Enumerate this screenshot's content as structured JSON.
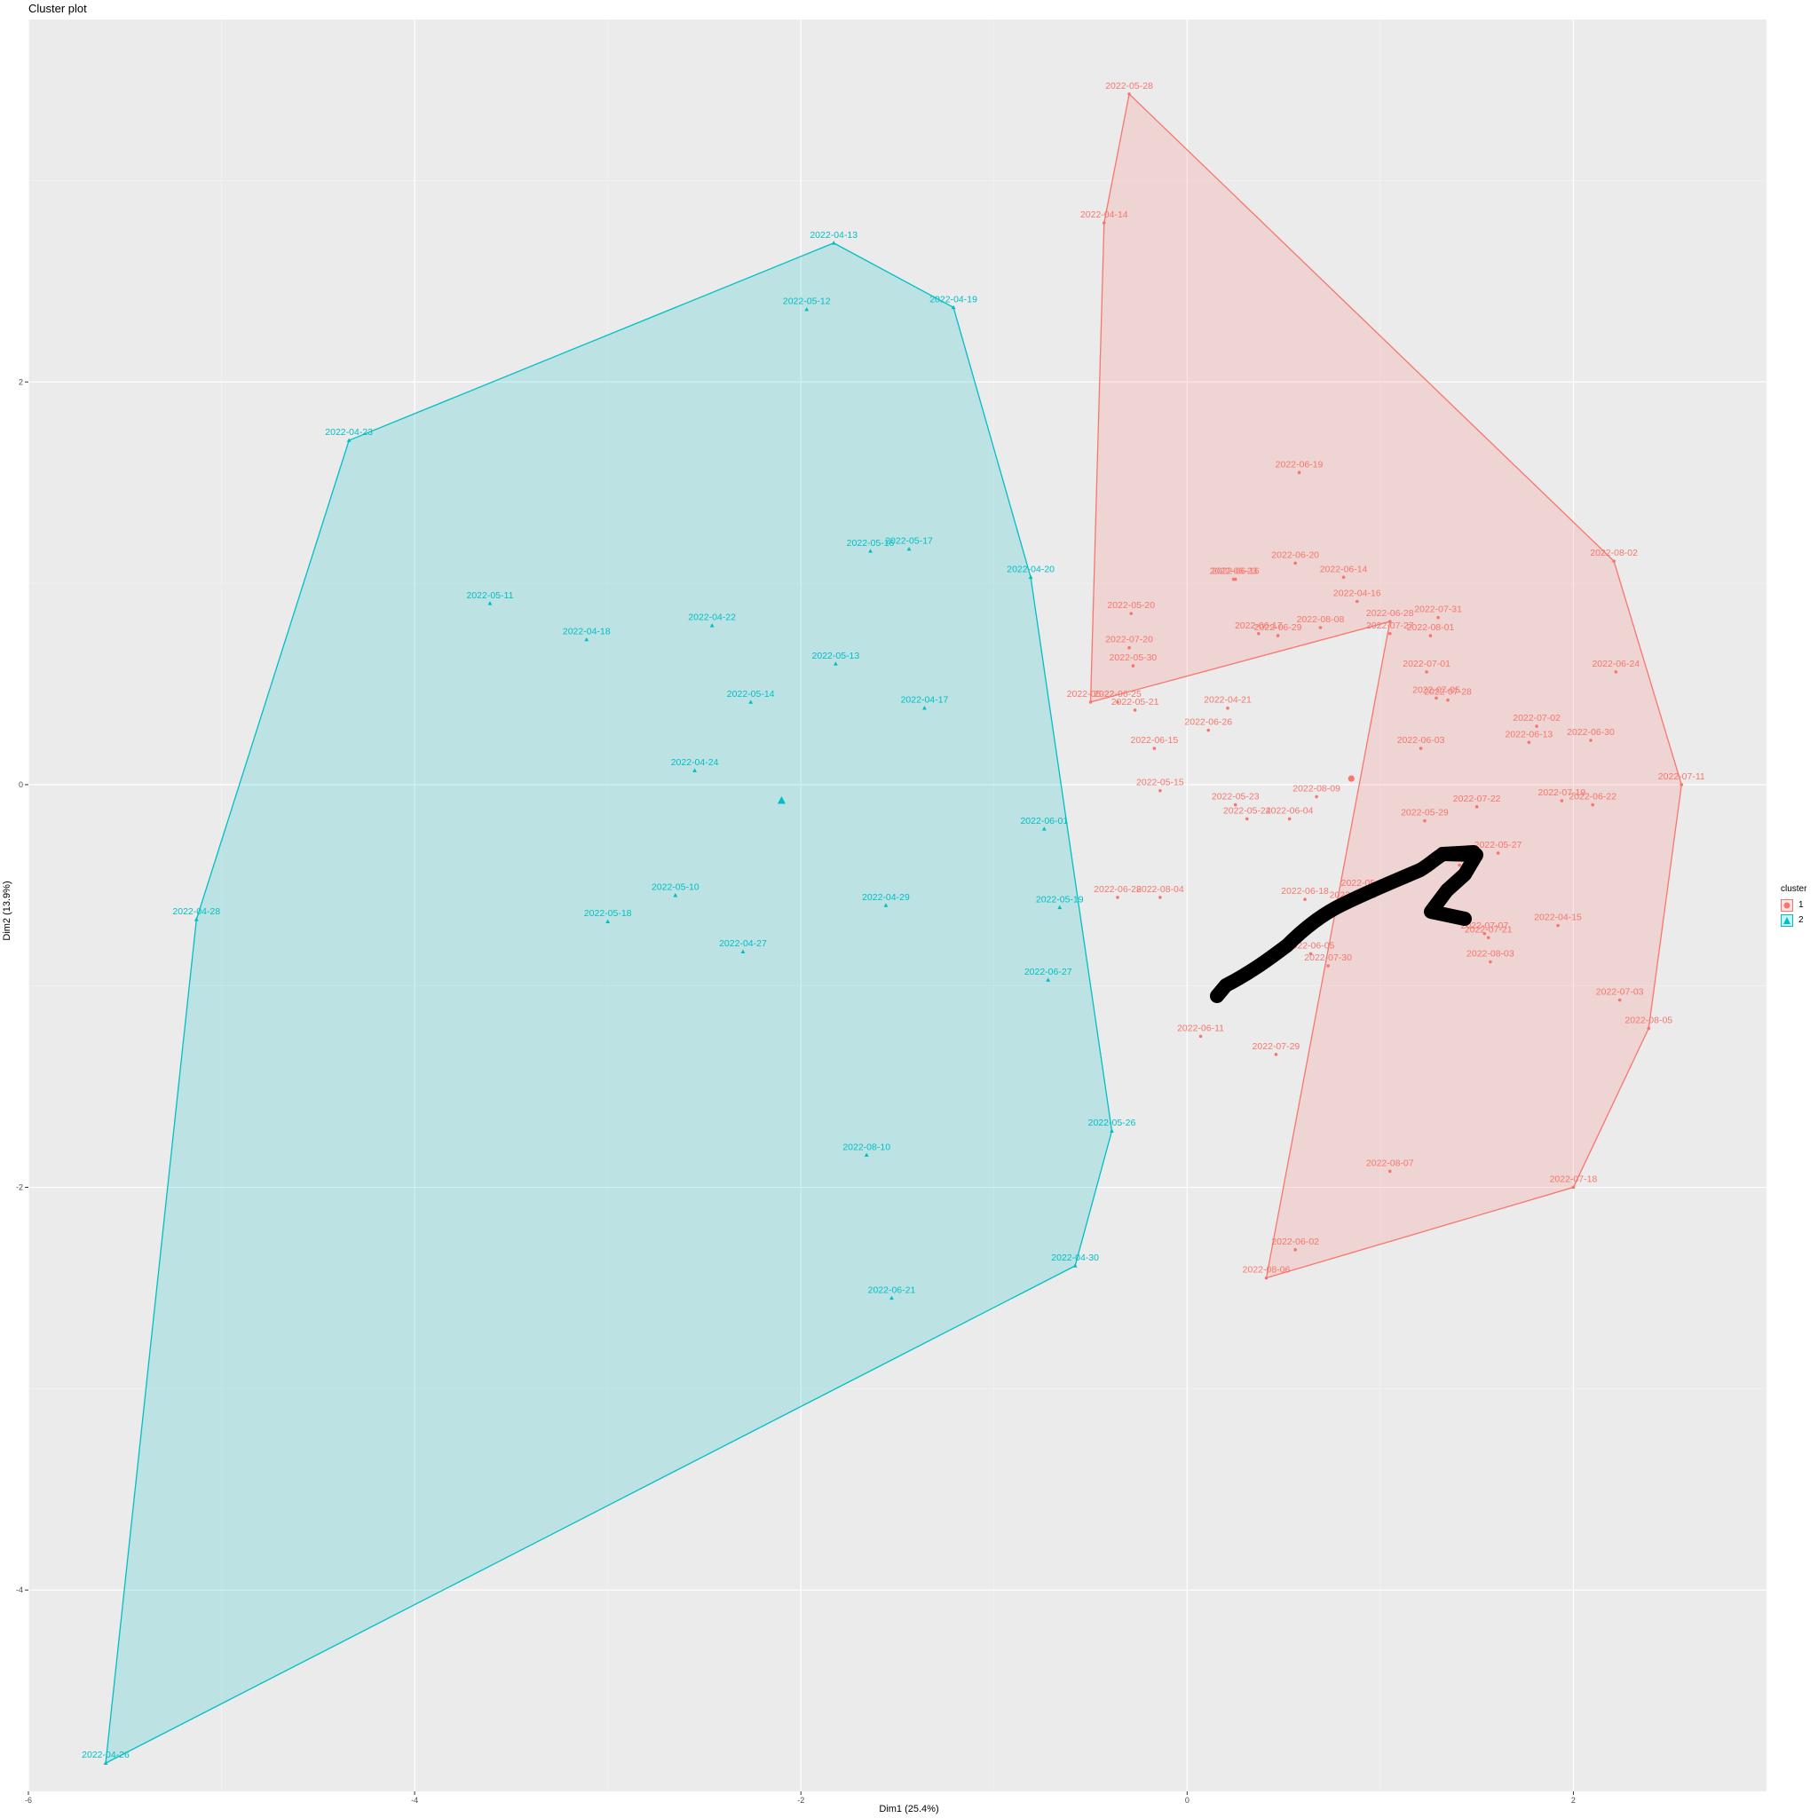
{
  "chart_data": {
    "type": "scatter",
    "title": "Cluster plot",
    "xlabel": "Dim1 (25.4%)",
    "ylabel": "Dim2 (13.9%)",
    "xlim": [
      -6,
      3
    ],
    "ylim": [
      -5,
      3.8
    ],
    "x_ticks": [
      -6,
      -4,
      -2,
      0,
      2
    ],
    "y_ticks": [
      -4,
      -2,
      0,
      2
    ],
    "x_tick_labels": [
      "-6",
      "-4",
      "-2",
      "0",
      "2"
    ],
    "y_tick_labels": [
      "-4",
      "-2",
      "0",
      "2"
    ],
    "grid": true,
    "legend": {
      "title": "cluster",
      "position": "right",
      "entries": [
        {
          "label": "1",
          "shape": "circle",
          "color": "#F8766D"
        },
        {
          "label": "2",
          "shape": "triangle",
          "color": "#00BFC4"
        }
      ]
    },
    "colors": {
      "cluster1": "#F8766D",
      "cluster2": "#00BFC4",
      "panel": "#EBEBEB",
      "grid": "#FFFFFF"
    },
    "centroids": [
      {
        "cluster": "1",
        "x": 0.85,
        "y": 0.03
      },
      {
        "cluster": "2",
        "x": -2.1,
        "y": -0.08
      }
    ],
    "hulls": [
      {
        "cluster": "1",
        "points": [
          "2022-05-28",
          "2022-04-14",
          "2022-05-22",
          "2022-06-28",
          "2022-08-06",
          "2022-07-18",
          "2022-08-05",
          "2022-07-11",
          "2022-08-02"
        ]
      },
      {
        "cluster": "2",
        "points": [
          "2022-04-13",
          "2022-04-23",
          "2022-04-28",
          "2022-04-26",
          "2022-04-30",
          "2022-05-26",
          "2022-04-20",
          "2022-04-19"
        ]
      }
    ],
    "series": [
      {
        "name": "1",
        "points": [
          {
            "label": "2022-05-28",
            "x": -0.3,
            "y": 3.43
          },
          {
            "label": "2022-04-14",
            "x": -0.43,
            "y": 2.79
          },
          {
            "label": "2022-06-19",
            "x": 0.58,
            "y": 1.55
          },
          {
            "label": "2022-08-02",
            "x": 2.21,
            "y": 1.11
          },
          {
            "label": "2022-06-23",
            "x": 0.24,
            "y": 1.02
          },
          {
            "label": "2022-06-16",
            "x": 0.25,
            "y": 1.02
          },
          {
            "label": "2022-06-20",
            "x": 0.56,
            "y": 1.1
          },
          {
            "label": "2022-06-14",
            "x": 0.81,
            "y": 1.03
          },
          {
            "label": "2022-04-16",
            "x": 0.88,
            "y": 0.91
          },
          {
            "label": "2022-05-20",
            "x": -0.29,
            "y": 0.85
          },
          {
            "label": "2022-07-31",
            "x": 1.3,
            "y": 0.83
          },
          {
            "label": "2022-06-28",
            "x": 1.05,
            "y": 0.81
          },
          {
            "label": "2022-06-17",
            "x": 0.37,
            "y": 0.75
          },
          {
            "label": "2022-06-29",
            "x": 0.47,
            "y": 0.74
          },
          {
            "label": "2022-08-08",
            "x": 0.69,
            "y": 0.78
          },
          {
            "label": "2022-07-27",
            "x": 1.05,
            "y": 0.75
          },
          {
            "label": "2022-08-01",
            "x": 1.26,
            "y": 0.74
          },
          {
            "label": "2022-07-20",
            "x": -0.3,
            "y": 0.68
          },
          {
            "label": "2022-05-30",
            "x": -0.28,
            "y": 0.59
          },
          {
            "label": "2022-07-01",
            "x": 1.24,
            "y": 0.56
          },
          {
            "label": "2022-06-24",
            "x": 2.22,
            "y": 0.56
          },
          {
            "label": "2022-05-22",
            "x": -0.5,
            "y": 0.41
          },
          {
            "label": "2022-06-25",
            "x": -0.36,
            "y": 0.41
          },
          {
            "label": "2022-05-21",
            "x": -0.27,
            "y": 0.37
          },
          {
            "label": "2022-07-05",
            "x": 1.29,
            "y": 0.43
          },
          {
            "label": "2022-07-28",
            "x": 1.35,
            "y": 0.42
          },
          {
            "label": "2022-04-21",
            "x": 0.21,
            "y": 0.38
          },
          {
            "label": "2022-07-02",
            "x": 1.81,
            "y": 0.29
          },
          {
            "label": "2022-06-26",
            "x": 0.11,
            "y": 0.27
          },
          {
            "label": "2022-06-13",
            "x": 1.77,
            "y": 0.21
          },
          {
            "label": "2022-06-30",
            "x": 2.09,
            "y": 0.22
          },
          {
            "label": "2022-06-15",
            "x": -0.17,
            "y": 0.18
          },
          {
            "label": "2022-06-03",
            "x": 1.21,
            "y": 0.18
          },
          {
            "label": "2022-07-11",
            "x": 2.56,
            "y": 0.0
          },
          {
            "label": "2022-05-15",
            "x": -0.14,
            "y": -0.03
          },
          {
            "label": "2022-08-09",
            "x": 0.67,
            "y": -0.06
          },
          {
            "label": "2022-07-19",
            "x": 1.94,
            "y": -0.08
          },
          {
            "label": "2022-06-22",
            "x": 2.1,
            "y": -0.1
          },
          {
            "label": "2022-05-23",
            "x": 0.25,
            "y": -0.1
          },
          {
            "label": "2022-07-22",
            "x": 1.5,
            "y": -0.11
          },
          {
            "label": "2022-05-24",
            "x": 0.31,
            "y": -0.17
          },
          {
            "label": "2022-06-04",
            "x": 0.53,
            "y": -0.17
          },
          {
            "label": "2022-05-29",
            "x": 1.23,
            "y": -0.18
          },
          {
            "label": "2022-05-27",
            "x": 1.61,
            "y": -0.34
          },
          {
            "label": "2022-08-12",
            "x": 1.41,
            "y": -0.4
          },
          {
            "label": "2022-06-28b",
            "x": -0.36,
            "y": -0.56
          },
          {
            "label": "2022-08-04",
            "x": -0.14,
            "y": -0.56
          },
          {
            "label": "2022-06-18",
            "x": 0.61,
            "y": -0.57
          },
          {
            "label": "2022-05-25",
            "x": 0.92,
            "y": -0.53
          },
          {
            "label": "2022-07-16",
            "x": 0.86,
            "y": -0.59
          },
          {
            "label": "2022-07-07",
            "x": 1.54,
            "y": -0.74
          },
          {
            "label": "2022-04-15",
            "x": 1.92,
            "y": -0.7
          },
          {
            "label": "2022-07-21",
            "x": 1.56,
            "y": -0.76
          },
          {
            "label": "2022-06-05",
            "x": 0.64,
            "y": -0.84
          },
          {
            "label": "2022-07-30",
            "x": 0.73,
            "y": -0.9
          },
          {
            "label": "2022-08-03",
            "x": 1.57,
            "y": -0.88
          },
          {
            "label": "2022-07-03",
            "x": 2.24,
            "y": -1.07
          },
          {
            "label": "2022-06-11",
            "x": 0.07,
            "y": -1.25
          },
          {
            "label": "2022-08-05",
            "x": 2.39,
            "y": -1.21
          },
          {
            "label": "2022-07-29",
            "x": 0.46,
            "y": -1.34
          },
          {
            "label": "2022-08-07",
            "x": 1.05,
            "y": -1.92
          },
          {
            "label": "2022-07-18",
            "x": 2.0,
            "y": -2.0
          },
          {
            "label": "2022-06-02",
            "x": 0.56,
            "y": -2.31
          },
          {
            "label": "2022-08-06",
            "x": 0.41,
            "y": -2.45
          }
        ]
      },
      {
        "name": "2",
        "points": [
          {
            "label": "2022-04-13",
            "x": -1.83,
            "y": 2.69
          },
          {
            "label": "2022-05-12",
            "x": -1.97,
            "y": 2.36
          },
          {
            "label": "2022-04-19",
            "x": -1.21,
            "y": 2.37
          },
          {
            "label": "2022-04-23",
            "x": -4.34,
            "y": 1.71
          },
          {
            "label": "2022-05-16",
            "x": -1.64,
            "y": 1.16
          },
          {
            "label": "2022-05-17",
            "x": -1.44,
            "y": 1.17
          },
          {
            "label": "2022-04-20",
            "x": -0.81,
            "y": 1.03
          },
          {
            "label": "2022-05-11",
            "x": -3.61,
            "y": 0.9
          },
          {
            "label": "2022-04-22",
            "x": -2.46,
            "y": 0.79
          },
          {
            "label": "2022-04-18",
            "x": -3.11,
            "y": 0.72
          },
          {
            "label": "2022-05-13",
            "x": -1.82,
            "y": 0.6
          },
          {
            "label": "2022-05-14",
            "x": -2.26,
            "y": 0.41
          },
          {
            "label": "2022-04-17",
            "x": -1.36,
            "y": 0.38
          },
          {
            "label": "2022-04-24",
            "x": -2.55,
            "y": 0.07
          },
          {
            "label": "2022-06-01",
            "x": -0.74,
            "y": -0.22
          },
          {
            "label": "2022-05-10",
            "x": -2.65,
            "y": -0.55
          },
          {
            "label": "2022-04-29",
            "x": -1.56,
            "y": -0.6
          },
          {
            "label": "2022-05-19",
            "x": -0.66,
            "y": -0.61
          },
          {
            "label": "2022-04-28",
            "x": -5.13,
            "y": -0.67
          },
          {
            "label": "2022-05-18",
            "x": -3.0,
            "y": -0.68
          },
          {
            "label": "2022-04-27",
            "x": -2.3,
            "y": -0.83
          },
          {
            "label": "2022-06-27",
            "x": -0.72,
            "y": -0.97
          },
          {
            "label": "2022-05-26",
            "x": -0.39,
            "y": -1.72
          },
          {
            "label": "2022-08-10",
            "x": -1.66,
            "y": -1.84
          },
          {
            "label": "2022-04-30",
            "x": -0.58,
            "y": -2.39
          },
          {
            "label": "2022-06-21",
            "x": -1.53,
            "y": -2.55
          },
          {
            "label": "2022-04-26",
            "x": -5.6,
            "y": -4.86
          }
        ]
      }
    ]
  }
}
